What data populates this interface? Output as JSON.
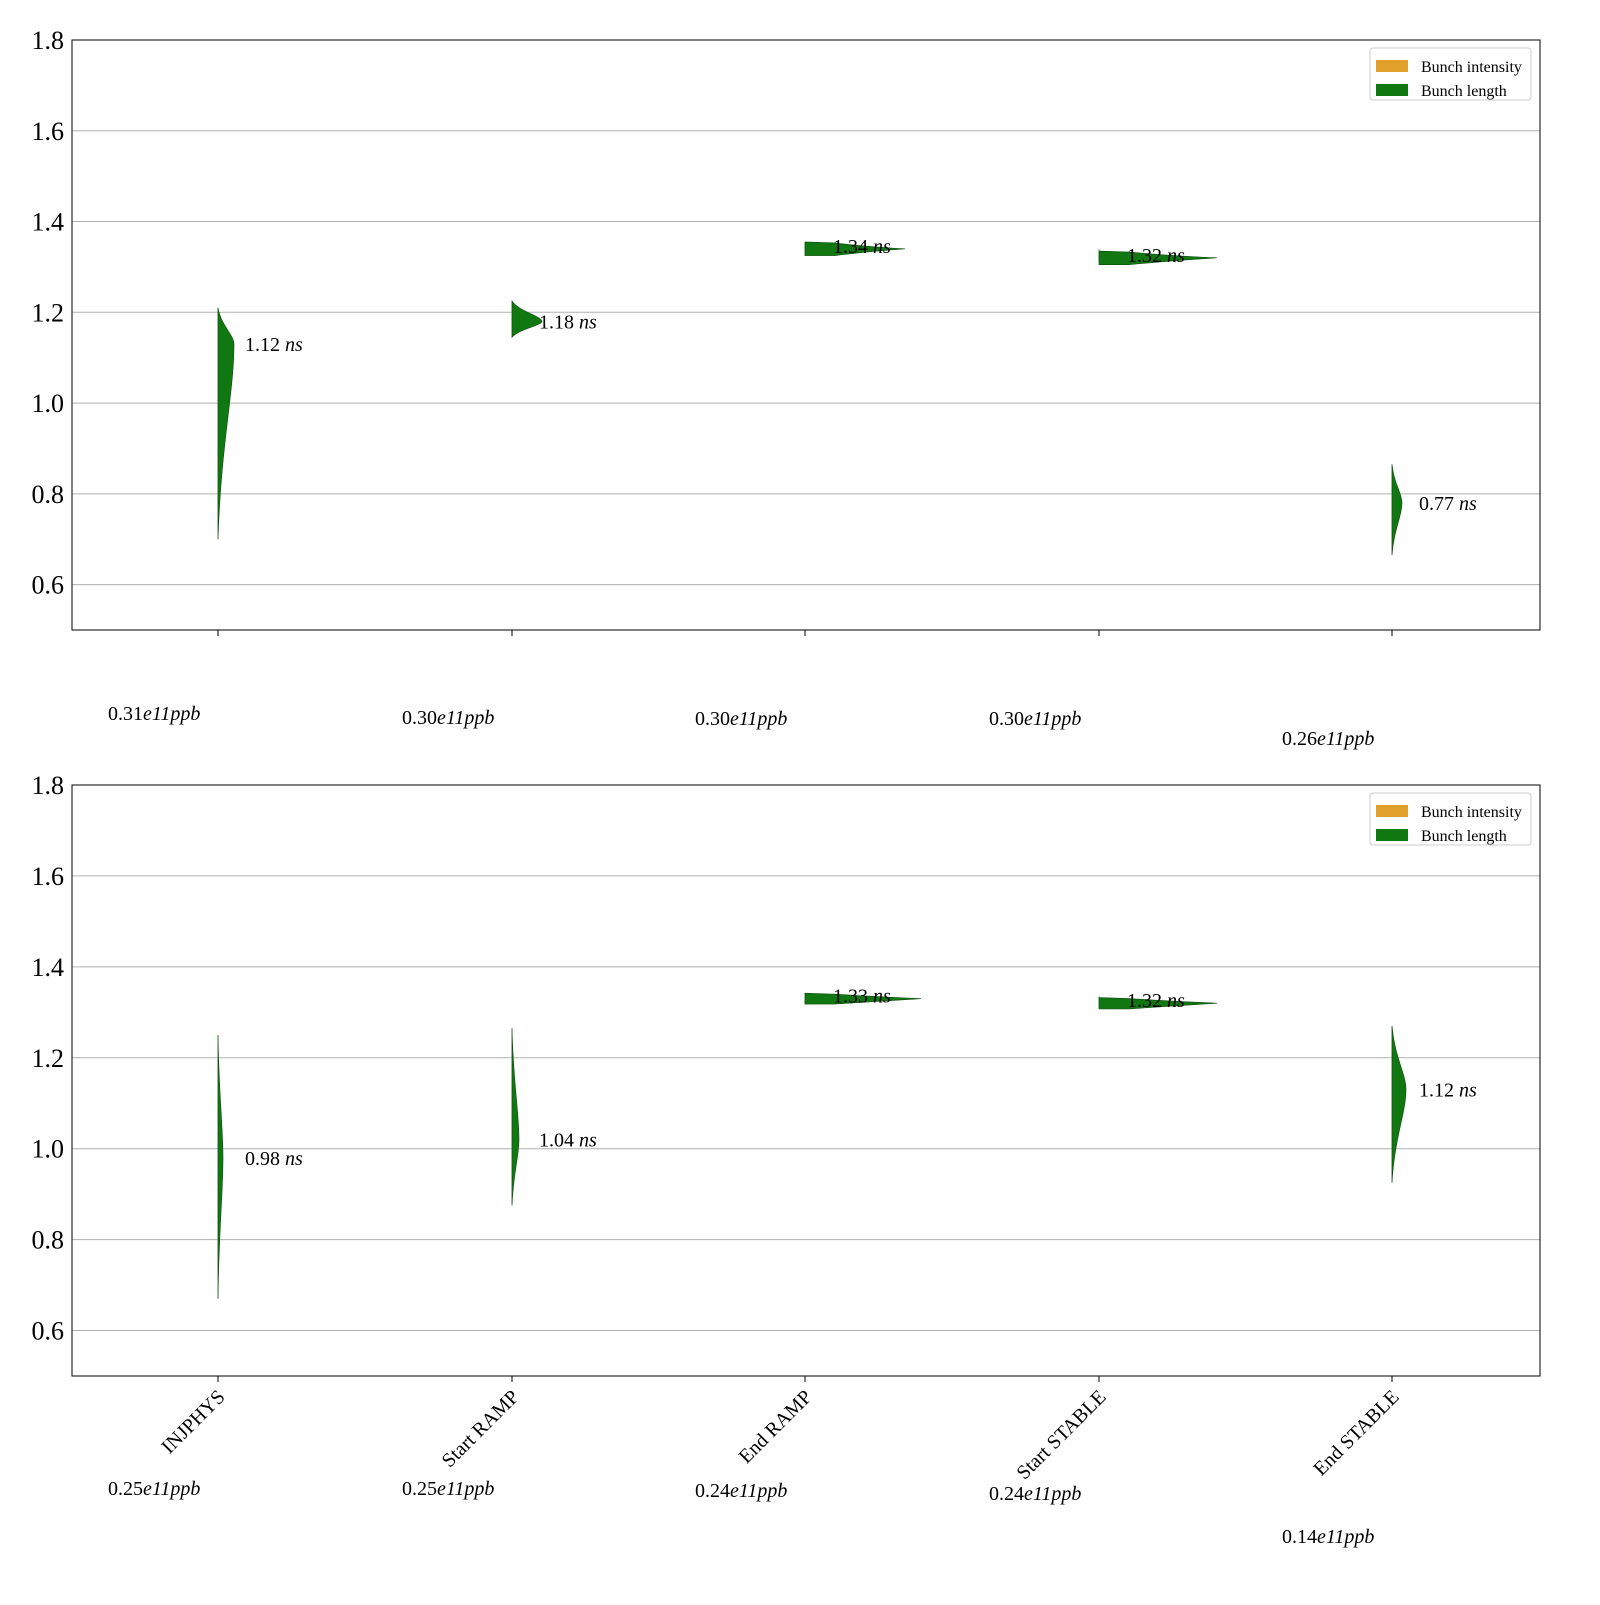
{
  "chart_data": [
    {
      "type": "violin",
      "ylim": [
        0.5,
        1.8
      ],
      "yticks": [
        "0.6",
        "0.8",
        "1.0",
        "1.2",
        "1.4",
        "1.6",
        "1.8"
      ],
      "grid": true,
      "legend_placement": "top-right",
      "legend": [
        {
          "label": "Bunch intensity",
          "color": "#E0A02A"
        },
        {
          "label": "Bunch length",
          "color": "#117711"
        }
      ],
      "categories": [
        "INJPHYS",
        "Start RAMP",
        "End RAMP",
        "Start STABLE",
        "End STABLE"
      ],
      "show_category_labels": false,
      "series": [
        {
          "category": "INJPHYS",
          "median": 1.13,
          "min": 0.7,
          "max": 1.21,
          "label_value": "1.12",
          "label_unit": "ns",
          "intensity_value": "0.31",
          "intensity_exp": "e11",
          "intensity_unit": "ppb"
        },
        {
          "category": "Start RAMP",
          "median": 1.18,
          "min": 1.145,
          "max": 1.225,
          "label_value": "1.18",
          "label_unit": "ns",
          "intensity_value": "0.30",
          "intensity_exp": "e11",
          "intensity_unit": "ppb"
        },
        {
          "category": "End RAMP",
          "median": 1.34,
          "min": 1.325,
          "max": 1.355,
          "label_value": "1.34",
          "label_unit": "ns",
          "intensity_value": "0.30",
          "intensity_exp": "e11",
          "intensity_unit": "ppb"
        },
        {
          "category": "Start STABLE",
          "median": 1.32,
          "min": 1.31,
          "max": 1.34,
          "label_value": "1.32",
          "label_unit": "ns",
          "intensity_value": "0.30",
          "intensity_exp": "e11",
          "intensity_unit": "ppb"
        },
        {
          "category": "End STABLE",
          "median": 0.78,
          "min": 0.665,
          "max": 0.865,
          "label_value": "0.77",
          "label_unit": "ns",
          "intensity_value": "0.26",
          "intensity_exp": "e11",
          "intensity_unit": "ppb"
        }
      ]
    },
    {
      "type": "violin",
      "ylim": [
        0.5,
        1.8
      ],
      "yticks": [
        "0.6",
        "0.8",
        "1.0",
        "1.2",
        "1.4",
        "1.6",
        "1.8"
      ],
      "grid": true,
      "legend_placement": "top-right",
      "legend": [
        {
          "label": "Bunch intensity",
          "color": "#E0A02A"
        },
        {
          "label": "Bunch length",
          "color": "#117711"
        }
      ],
      "categories": [
        "INJPHYS",
        "Start RAMP",
        "End RAMP",
        "Start STABLE",
        "End STABLE"
      ],
      "show_category_labels": true,
      "series": [
        {
          "category": "INJPHYS",
          "median": 0.98,
          "min": 0.67,
          "max": 1.25,
          "label_value": "0.98",
          "label_unit": "ns",
          "intensity_value": "0.25",
          "intensity_exp": "e11",
          "intensity_unit": "ppb"
        },
        {
          "category": "Start RAMP",
          "median": 1.02,
          "min": 0.875,
          "max": 1.265,
          "label_value": "1.04",
          "label_unit": "ns",
          "intensity_value": "0.25",
          "intensity_exp": "e11",
          "intensity_unit": "ppb"
        },
        {
          "category": "End RAMP",
          "median": 1.33,
          "min": 1.318,
          "max": 1.342,
          "label_value": "1.33",
          "label_unit": "ns",
          "intensity_value": "0.24",
          "intensity_exp": "e11",
          "intensity_unit": "ppb"
        },
        {
          "category": "Start STABLE",
          "median": 1.32,
          "min": 1.31,
          "max": 1.335,
          "label_value": "1.32",
          "label_unit": "ns",
          "intensity_value": "0.24",
          "intensity_exp": "e11",
          "intensity_unit": "ppb"
        },
        {
          "category": "End STABLE",
          "median": 1.13,
          "min": 0.925,
          "max": 1.27,
          "label_value": "1.12",
          "label_unit": "ns",
          "intensity_value": "0.14",
          "intensity_exp": "e11",
          "intensity_unit": "ppb"
        }
      ]
    }
  ]
}
